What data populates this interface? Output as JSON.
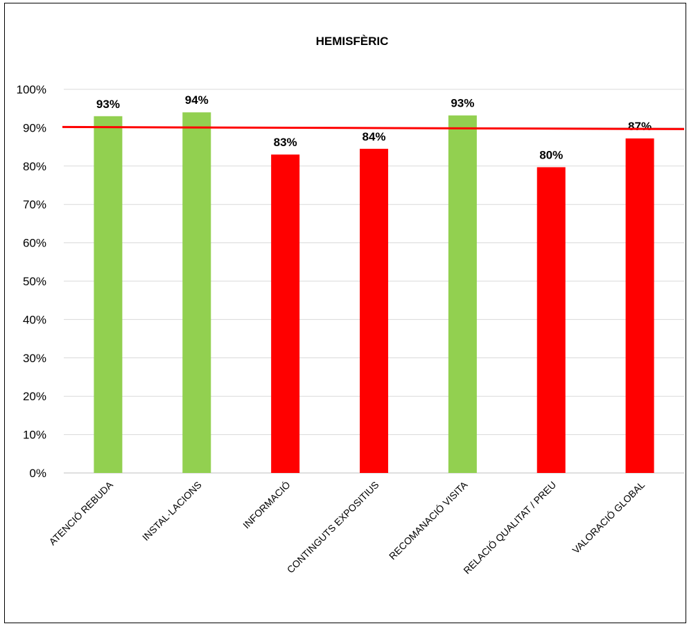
{
  "chart_data": {
    "type": "bar",
    "title": "HEMISFÈRIC",
    "categories": [
      "ATENCIÓ REBUDA",
      "INSTAL·LACIONS",
      "INFORMACIÓ",
      "CONTINGUTS EXPOSITIUS",
      "RECOMANACIÓ VISITA",
      "RELACIÓ QUALITAT / PREU",
      "VALORACIÓ GLOBAL"
    ],
    "values": [
      0.93,
      0.94,
      0.83,
      0.845,
      0.932,
      0.797,
      0.872
    ],
    "data_labels": [
      "93%",
      "94%",
      "83%",
      "84%",
      "93%",
      "80%",
      "87%"
    ],
    "bar_colors": [
      "#92d050",
      "#92d050",
      "#ff0000",
      "#ff0000",
      "#92d050",
      "#ff0000",
      "#ff0000"
    ],
    "ylim": [
      0,
      1
    ],
    "yticks": [
      0,
      0.1,
      0.2,
      0.3,
      0.4,
      0.5,
      0.6,
      0.7,
      0.8,
      0.9,
      1.0
    ],
    "ytick_labels": [
      "0%",
      "10%",
      "20%",
      "30%",
      "40%",
      "50%",
      "60%",
      "70%",
      "80%",
      "90%",
      "100%"
    ],
    "target_line": {
      "value": 0.9,
      "color": "#ff0000"
    },
    "grid": true,
    "legend": "none",
    "xlabel": "",
    "ylabel": ""
  }
}
